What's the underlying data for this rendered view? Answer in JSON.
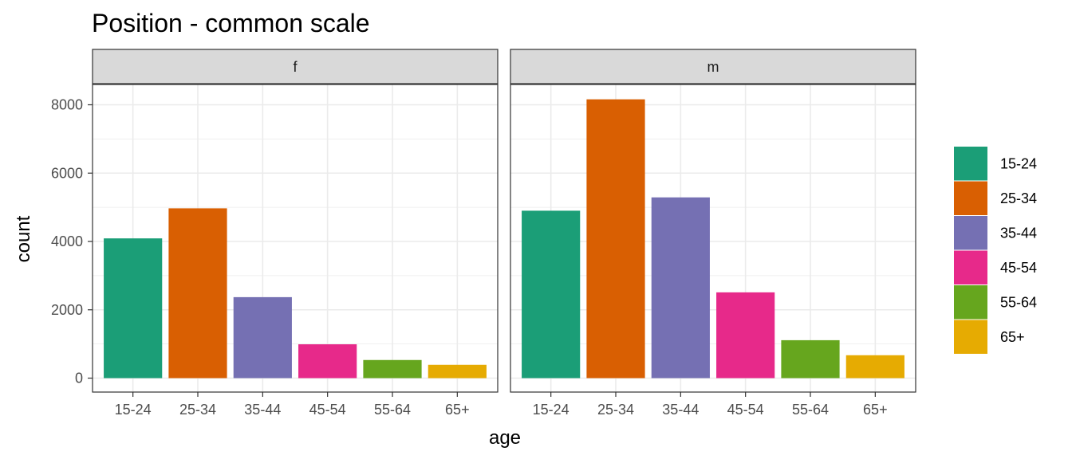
{
  "chart_data": {
    "type": "bar",
    "title": "Position - common scale",
    "xlabel": "age",
    "ylabel": "count",
    "ylim": [
      0,
      9000
    ],
    "yticks": [
      0,
      2000,
      4000,
      6000,
      8000
    ],
    "categories": [
      "15-24",
      "25-34",
      "35-44",
      "45-54",
      "55-64",
      "65+"
    ],
    "facets": [
      {
        "label": "f",
        "values": [
          4090,
          4970,
          2370,
          990,
          530,
          390
        ]
      },
      {
        "label": "m",
        "values": [
          4900,
          8160,
          5290,
          2510,
          1110,
          670
        ]
      }
    ],
    "colors": [
      "#1b9e77",
      "#d95f02",
      "#7570b3",
      "#e7298a",
      "#66a61e",
      "#e6ab02"
    ],
    "legend": {
      "position": "right",
      "entries": [
        "15-24",
        "25-34",
        "35-44",
        "45-54",
        "55-64",
        "65+"
      ]
    },
    "grid": true
  }
}
